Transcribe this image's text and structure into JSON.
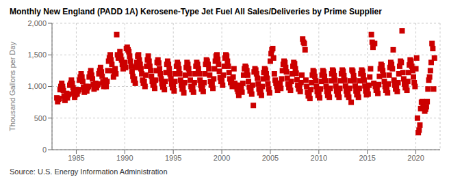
{
  "chart_data": {
    "type": "scatter",
    "title": "Monthly New England (PADD 1A) Kerosene-Type Jet Fuel All Sales/Deliveries by Prime Supplier",
    "ylabel": "Thousand Gallons per Day",
    "annotations": [
      "Source: U.S. Energy Information Administration"
    ],
    "color": "#cc0000",
    "marker": "square",
    "grid": true,
    "xlim": [
      1982.5,
      2022.5
    ],
    "xticks": [
      1985,
      1990,
      1995,
      2000,
      2005,
      2010,
      2015,
      2020
    ],
    "ylim": [
      0,
      2000
    ],
    "yticks": [
      0,
      500,
      {
        "value": 1000,
        "label": "1,000"
      },
      {
        "value": 1500,
        "label": "1,500"
      },
      {
        "value": 2000,
        "label": "2,000"
      }
    ],
    "x": [
      1983.0,
      1983.083,
      1983.167,
      1983.25,
      1983.333,
      1983.417,
      1983.5,
      1983.583,
      1983.667,
      1983.75,
      1983.833,
      1983.917,
      1984.0,
      1984.083,
      1984.167,
      1984.25,
      1984.333,
      1984.417,
      1984.5,
      1984.583,
      1984.667,
      1984.75,
      1984.833,
      1984.917,
      1985.0,
      1985.083,
      1985.167,
      1985.25,
      1985.333,
      1985.417,
      1985.5,
      1985.583,
      1985.667,
      1985.75,
      1985.833,
      1985.917,
      1986.0,
      1986.083,
      1986.167,
      1986.25,
      1986.333,
      1986.417,
      1986.5,
      1986.583,
      1986.667,
      1986.75,
      1986.833,
      1986.917,
      1987.0,
      1987.083,
      1987.167,
      1987.25,
      1987.333,
      1987.417,
      1987.5,
      1987.583,
      1987.667,
      1987.75,
      1987.833,
      1987.917,
      1988.0,
      1988.083,
      1988.167,
      1988.25,
      1988.333,
      1988.417,
      1988.5,
      1988.583,
      1988.667,
      1988.75,
      1988.833,
      1988.917,
      1989.0,
      1989.083,
      1989.167,
      1989.25,
      1989.333,
      1989.417,
      1989.5,
      1989.583,
      1989.667,
      1989.75,
      1989.833,
      1989.917,
      1990.0,
      1990.083,
      1990.167,
      1990.25,
      1990.333,
      1990.417,
      1990.5,
      1990.583,
      1990.667,
      1990.75,
      1990.833,
      1990.917,
      1991.0,
      1991.083,
      1991.167,
      1991.25,
      1991.333,
      1991.417,
      1991.5,
      1991.583,
      1991.667,
      1991.75,
      1991.833,
      1991.917,
      1992.0,
      1992.083,
      1992.167,
      1992.25,
      1992.333,
      1992.417,
      1992.5,
      1992.583,
      1992.667,
      1992.75,
      1992.833,
      1992.917,
      1993.0,
      1993.083,
      1993.167,
      1993.25,
      1993.333,
      1993.417,
      1993.5,
      1993.583,
      1993.667,
      1993.75,
      1993.833,
      1993.917,
      1994.0,
      1994.083,
      1994.167,
      1994.25,
      1994.333,
      1994.417,
      1994.5,
      1994.583,
      1994.667,
      1994.75,
      1994.833,
      1994.917,
      1995.0,
      1995.083,
      1995.167,
      1995.25,
      1995.333,
      1995.417,
      1995.5,
      1995.583,
      1995.667,
      1995.75,
      1995.833,
      1995.917,
      1996.0,
      1996.083,
      1996.167,
      1996.25,
      1996.333,
      1996.417,
      1996.5,
      1996.583,
      1996.667,
      1996.75,
      1996.833,
      1996.917,
      1997.0,
      1997.083,
      1997.167,
      1997.25,
      1997.333,
      1997.417,
      1997.5,
      1997.583,
      1997.667,
      1997.75,
      1997.833,
      1997.917,
      1998.0,
      1998.083,
      1998.167,
      1998.25,
      1998.333,
      1998.417,
      1998.5,
      1998.583,
      1998.667,
      1998.75,
      1998.833,
      1998.917,
      1999.0,
      1999.083,
      1999.167,
      1999.25,
      1999.333,
      1999.417,
      1999.5,
      1999.583,
      1999.667,
      1999.75,
      1999.833,
      1999.917,
      2000.0,
      2000.083,
      2000.167,
      2000.25,
      2000.333,
      2000.417,
      2000.5,
      2000.583,
      2000.667,
      2000.75,
      2000.833,
      2000.917,
      2001.0,
      2001.083,
      2001.167,
      2001.25,
      2001.333,
      2001.417,
      2001.5,
      2001.583,
      2001.667,
      2001.75,
      2001.833,
      2001.917,
      2002.0,
      2002.083,
      2002.167,
      2002.25,
      2002.333,
      2002.417,
      2002.5,
      2002.583,
      2002.667,
      2002.75,
      2002.833,
      2002.917,
      2003.0,
      2003.083,
      2003.167,
      2003.25,
      2003.333,
      2003.417,
      2003.5,
      2003.583,
      2003.667,
      2003.75,
      2003.833,
      2003.917,
      2004.0,
      2004.083,
      2004.167,
      2004.25,
      2004.333,
      2004.417,
      2004.5,
      2004.583,
      2004.667,
      2004.75,
      2004.833,
      2004.917,
      2005.0,
      2005.083,
      2005.167,
      2005.25,
      2005.333,
      2005.417,
      2005.5,
      2005.583,
      2005.667,
      2005.75,
      2005.833,
      2005.917,
      2006.0,
      2006.083,
      2006.167,
      2006.25,
      2006.333,
      2006.417,
      2006.5,
      2006.583,
      2006.667,
      2006.75,
      2006.833,
      2006.917,
      2007.0,
      2007.083,
      2007.167,
      2007.25,
      2007.333,
      2007.417,
      2007.5,
      2007.583,
      2007.667,
      2007.75,
      2007.833,
      2007.917,
      2008.0,
      2008.083,
      2008.167,
      2008.25,
      2008.333,
      2008.417,
      2008.5,
      2008.583,
      2008.667,
      2008.75,
      2008.833,
      2008.917,
      2009.0,
      2009.083,
      2009.167,
      2009.25,
      2009.333,
      2009.417,
      2009.5,
      2009.583,
      2009.667,
      2009.75,
      2009.833,
      2009.917,
      2010.0,
      2010.083,
      2010.167,
      2010.25,
      2010.333,
      2010.417,
      2010.5,
      2010.583,
      2010.667,
      2010.75,
      2010.833,
      2010.917,
      2011.0,
      2011.083,
      2011.167,
      2011.25,
      2011.333,
      2011.417,
      2011.5,
      2011.583,
      2011.667,
      2011.75,
      2011.833,
      2011.917,
      2012.0,
      2012.083,
      2012.167,
      2012.25,
      2012.333,
      2012.417,
      2012.5,
      2012.583,
      2012.667,
      2012.75,
      2012.833,
      2012.917,
      2013.0,
      2013.083,
      2013.167,
      2013.25,
      2013.333,
      2013.417,
      2013.5,
      2013.583,
      2013.667,
      2013.75,
      2013.833,
      2013.917,
      2014.0,
      2014.083,
      2014.167,
      2014.25,
      2014.333,
      2014.417,
      2014.5,
      2014.583,
      2014.667,
      2014.75,
      2014.833,
      2014.917,
      2015.0,
      2015.083,
      2015.167,
      2015.25,
      2015.333,
      2015.417,
      2015.5,
      2015.583,
      2015.667,
      2015.75,
      2015.833,
      2015.917,
      2016.0,
      2016.083,
      2016.167,
      2016.25,
      2016.333,
      2016.417,
      2016.5,
      2016.583,
      2016.667,
      2016.75,
      2016.833,
      2016.917,
      2017.0,
      2017.083,
      2017.167,
      2017.25,
      2017.333,
      2017.417,
      2017.5,
      2017.583,
      2017.667,
      2017.75,
      2017.833,
      2017.917,
      2018.0,
      2018.083,
      2018.167,
      2018.25,
      2018.333,
      2018.417,
      2018.5,
      2018.583,
      2018.667,
      2018.75,
      2018.833,
      2018.917,
      2019.0,
      2019.083,
      2019.167,
      2019.25,
      2019.333,
      2019.417,
      2019.5,
      2019.583,
      2019.667,
      2019.75,
      2019.833,
      2019.917,
      2020.0,
      2020.083,
      2020.167,
      2020.25,
      2020.333,
      2020.417,
      2020.5,
      2020.583,
      2020.667,
      2020.75,
      2020.833,
      2020.917,
      2021.0,
      2021.083,
      2021.167,
      2021.25,
      2021.333,
      2021.417,
      2021.5,
      2021.583,
      2021.667,
      2021.75,
      2021.833,
      2021.917
    ],
    "values": [
      820,
      760,
      800,
      810,
      950,
      1000,
      1050,
      1000,
      940,
      850,
      780,
      820,
      890,
      820,
      870,
      880,
      1020,
      1050,
      1100,
      1050,
      980,
      900,
      830,
      870,
      950,
      880,
      930,
      950,
      1100,
      1150,
      1200,
      1150,
      1080,
      990,
      910,
      950,
      1000,
      930,
      980,
      1000,
      1150,
      1200,
      1250,
      1180,
      1120,
      1030,
      960,
      990,
      1050,
      980,
      1020,
      1040,
      1200,
      1250,
      1300,
      1230,
      1160,
      1070,
      1000,
      1040,
      1100,
      1000,
      1080,
      1250,
      1400,
      1450,
      1500,
      1420,
      1350,
      1250,
      1150,
      1200,
      1280,
      1200,
      1820,
      1500,
      1450,
      1480,
      1550,
      1480,
      1420,
      1350,
      1280,
      1350,
      1380,
      1300,
      1600,
      1620,
      1580,
      1550,
      1480,
      1400,
      1320,
      1240,
      1160,
      1100,
      1120,
      1050,
      1300,
      1380,
      1480,
      1500,
      1420,
      1350,
      1280,
      1200,
      1100,
      1050,
      1080,
      1000,
      1180,
      1320,
      1420,
      1480,
      1400,
      1320,
      1250,
      1160,
      1080,
      1020,
      1050,
      970,
      1100,
      1250,
      1380,
      1420,
      1370,
      1280,
      1200,
      1120,
      1050,
      990,
      1020,
      950,
      1080,
      1220,
      1350,
      1400,
      1350,
      1280,
      1200,
      1120,
      1040,
      980,
      1000,
      930,
      1080,
      1200,
      1320,
      1380,
      1350,
      1280,
      1200,
      1100,
      1020,
      960,
      980,
      900,
      1060,
      1180,
      1300,
      1380,
      1350,
      1280,
      1200,
      1100,
      1000,
      950,
      980,
      910,
      1060,
      1200,
      1320,
      1380,
      1350,
      1280,
      1200,
      1100,
      1020,
      960,
      990,
      920,
      1060,
      1200,
      1350,
      1420,
      1400,
      1350,
      1280,
      1180,
      1080,
      1020,
      1050,
      970,
      1120,
      1280,
      1400,
      1480,
      1500,
      1430,
      1350,
      1240,
      1140,
      1080,
      1100,
      1020,
      1180,
      1320,
      1450,
      1500,
      1480,
      1400,
      1320,
      1220,
      1120,
      1060,
      1080,
      1000,
      1150,
      1280,
      1050,
      1020,
      1000,
      960,
      920,
      860,
      1020,
      960,
      980,
      910,
      1050,
      1180,
      1280,
      1320,
      1300,
      1250,
      1180,
      1080,
      990,
      930,
      960,
      880,
      1020,
      700,
      1230,
      1280,
      1260,
      1200,
      1130,
      1040,
      960,
      900,
      930,
      860,
      1000,
      1120,
      1220,
      1280,
      1260,
      1200,
      1130,
      1040,
      960,
      900,
      1400,
      1520,
      1580,
      1600,
      1450,
      1200,
      1100,
      1050,
      1000,
      940,
      1050,
      1000,
      1050,
      970,
      1120,
      1250,
      1350,
      1400,
      1380,
      1300,
      1230,
      1130,
      1040,
      980,
      1020,
      940,
      1080,
      1200,
      1320,
      1380,
      1360,
      1280,
      1210,
      1110,
      1020,
      960,
      1000,
      920,
      1060,
      1180,
      1750,
      1700,
      1680,
      1580,
      1100,
      1000,
      910,
      850,
      880,
      810,
      950,
      1060,
      1180,
      1250,
      1230,
      1160,
      1090,
      1000,
      920,
      860,
      890,
      820,
      960,
      1080,
      1180,
      1250,
      1230,
      1160,
      1090,
      1000,
      920,
      860,
      900,
      830,
      970,
      1090,
      1200,
      1260,
      1240,
      1170,
      1100,
      1010,
      930,
      870,
      900,
      830,
      970,
      1090,
      1200,
      1260,
      1240,
      1170,
      1100,
      1010,
      930,
      870,
      900,
      830,
      970,
      1090,
      750,
      1260,
      1240,
      1170,
      1100,
      1010,
      930,
      870,
      900,
      830,
      970,
      1090,
      1200,
      1260,
      1240,
      1170,
      1100,
      1010,
      930,
      870,
      950,
      880,
      1020,
      1150,
      1280,
      1820,
      1700,
      1620,
      1050,
      1680,
      1000,
      940,
      960,
      890,
      1030,
      1160,
      1280,
      1350,
      1330,
      1250,
      1180,
      1080,
      1000,
      940,
      970,
      900,
      1040,
      1180,
      1300,
      1380,
      1350,
      1280,
      1580,
      1100,
      1020,
      960,
      990,
      920,
      1060,
      1200,
      1320,
      1400,
      1380,
      1880,
      1220,
      1120,
      1040,
      980,
      1010,
      940,
      1080,
      1220,
      1340,
      1420,
      1400,
      1320,
      1250,
      1150,
      1060,
      1000,
      1280,
      1450,
      500,
      270,
      310,
      390,
      650,
      750,
      760,
      720,
      660,
      610,
      640,
      680,
      760,
      960,
      1100,
      1150,
      1250,
      1380,
      1680,
      1600,
      960,
      1450
    ]
  }
}
